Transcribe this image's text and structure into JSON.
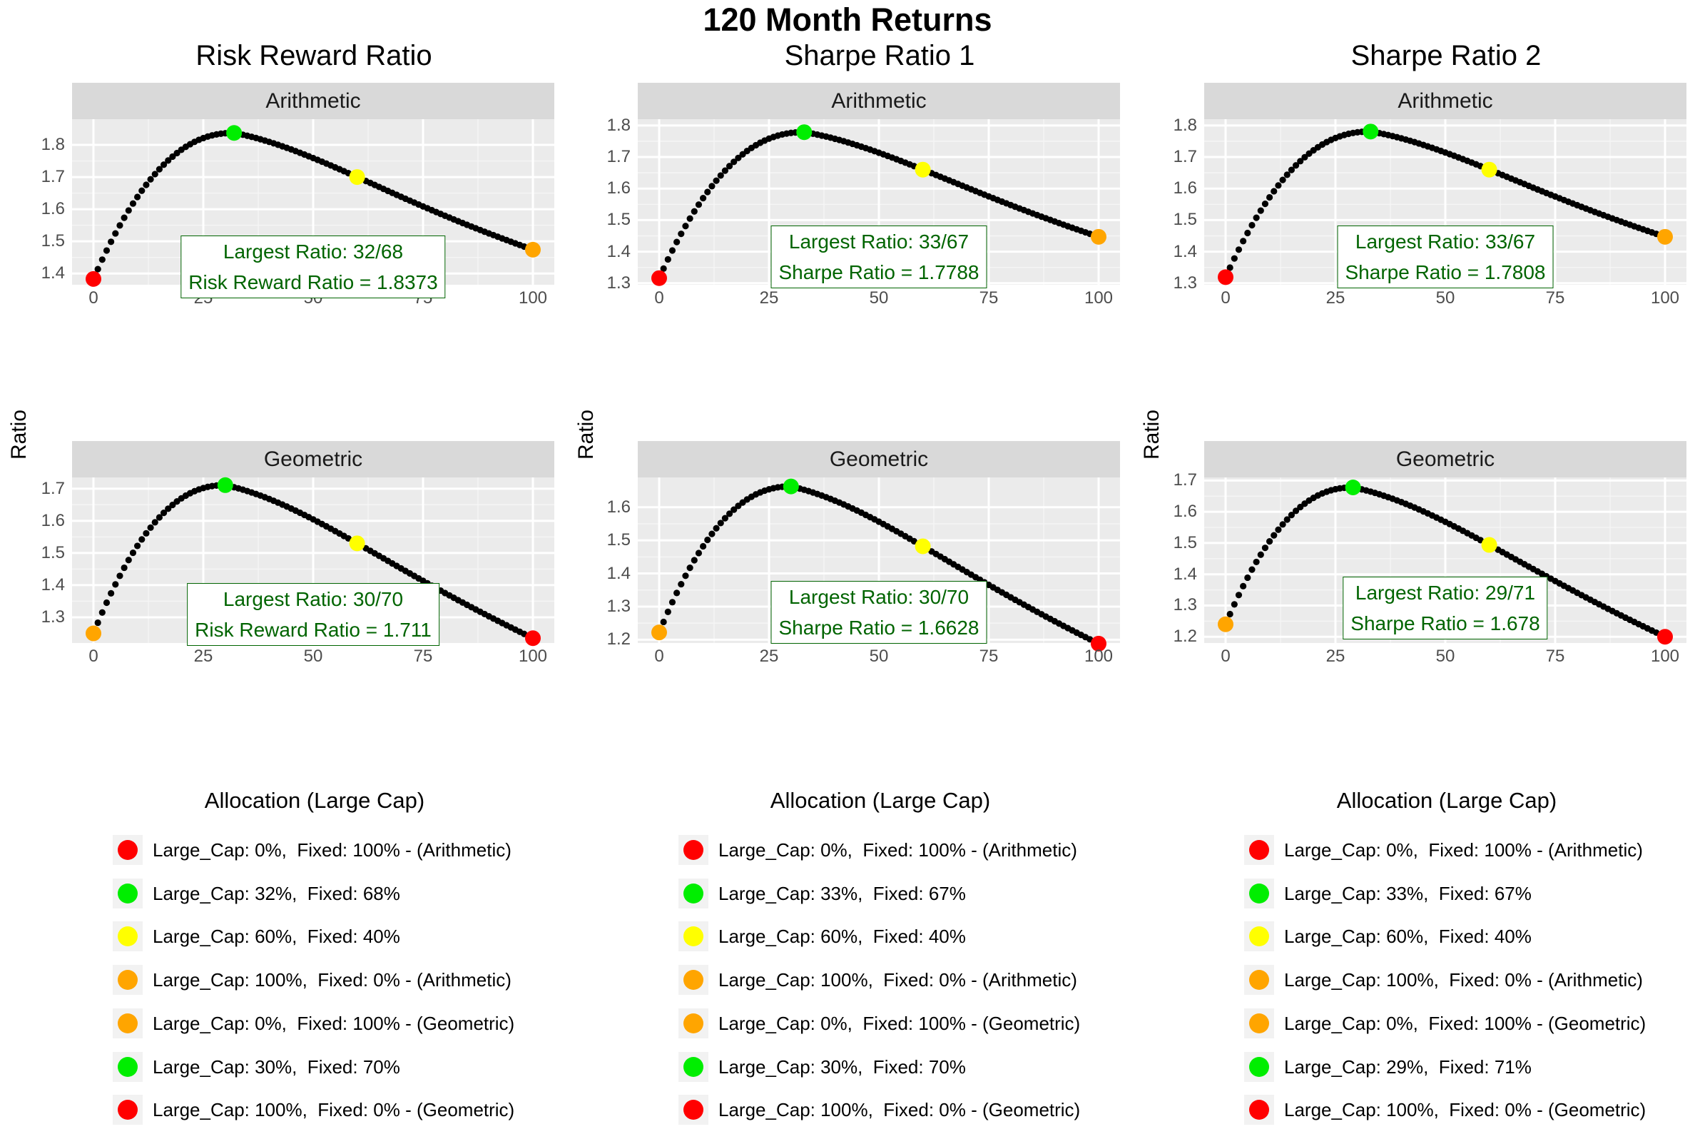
{
  "title": "120 Month Returns",
  "x_axis_label": "Allocation (Large Cap)",
  "y_axis_label": "Ratio",
  "colors": {
    "red": "#ff0000",
    "green": "#00ee00",
    "yellow": "#ffff00",
    "orange": "#ffa500",
    "curve": "#000000",
    "annotation": "#006400"
  },
  "chart_data": [
    {
      "type": "scatter",
      "title": "Risk Reward Ratio",
      "facet": "Arithmetic",
      "xlabel": "",
      "ylabel": "Ratio",
      "xlim": [
        0,
        100
      ],
      "xticks": [
        0,
        25,
        50,
        75,
        100
      ],
      "ylim": [
        1.365,
        1.88
      ],
      "yticks": [
        1.4,
        1.5,
        1.6,
        1.7,
        1.8
      ],
      "curve": {
        "start": 1.383,
        "peak_x": 32,
        "peak": 1.8373,
        "mid_x": 60,
        "mid": 1.7,
        "end": 1.474
      },
      "highlights": [
        {
          "x": 0,
          "y": 1.383,
          "color": "red"
        },
        {
          "x": 32,
          "y": 1.8373,
          "color": "green"
        },
        {
          "x": 60,
          "y": 1.7,
          "color": "yellow"
        },
        {
          "x": 100,
          "y": 1.474,
          "color": "orange"
        }
      ],
      "annotation": {
        "line1": "Largest Ratio: 32/68",
        "line2": "Risk Reward Ratio = 1.8373",
        "x": 50,
        "y": 1.421
      }
    },
    {
      "type": "scatter",
      "title": "Risk Reward Ratio",
      "facet": "Geometric",
      "xlabel": "Allocation (Large Cap)",
      "ylabel": "Ratio",
      "xlim": [
        0,
        100
      ],
      "xticks": [
        0,
        25,
        50,
        75,
        100
      ],
      "ylim": [
        1.22,
        1.735
      ],
      "yticks": [
        1.3,
        1.4,
        1.5,
        1.6,
        1.7
      ],
      "curve": {
        "start": 1.25,
        "peak_x": 30,
        "peak": 1.711,
        "mid_x": 60,
        "mid": 1.53,
        "end": 1.235
      },
      "highlights": [
        {
          "x": 0,
          "y": 1.25,
          "color": "orange"
        },
        {
          "x": 30,
          "y": 1.711,
          "color": "green"
        },
        {
          "x": 60,
          "y": 1.53,
          "color": "yellow"
        },
        {
          "x": 100,
          "y": 1.235,
          "color": "red"
        }
      ],
      "annotation": {
        "line1": "Largest Ratio: 30/70",
        "line2": "Risk Reward Ratio = 1.711",
        "x": 50,
        "y": 1.308
      }
    },
    {
      "type": "scatter",
      "title": "Sharpe Ratio 1",
      "facet": "Arithmetic",
      "xlabel": "",
      "ylabel": "Ratio",
      "xlim": [
        0,
        100
      ],
      "xticks": [
        0,
        25,
        50,
        75,
        100
      ],
      "ylim": [
        1.295,
        1.82
      ],
      "yticks": [
        1.3,
        1.4,
        1.5,
        1.6,
        1.7,
        1.8
      ],
      "curve": {
        "start": 1.316,
        "peak_x": 33,
        "peak": 1.7788,
        "mid_x": 60,
        "mid": 1.66,
        "end": 1.447
      },
      "highlights": [
        {
          "x": 0,
          "y": 1.316,
          "color": "red"
        },
        {
          "x": 33,
          "y": 1.7788,
          "color": "green"
        },
        {
          "x": 60,
          "y": 1.66,
          "color": "yellow"
        },
        {
          "x": 100,
          "y": 1.447,
          "color": "orange"
        }
      ],
      "annotation": {
        "line1": "Largest Ratio: 33/67",
        "line2": "Sharpe Ratio = 1.7788",
        "x": 50,
        "y": 1.383
      }
    },
    {
      "type": "scatter",
      "title": "Sharpe Ratio 1",
      "facet": "Geometric",
      "xlabel": "Allocation (Large Cap)",
      "ylabel": "Ratio",
      "xlim": [
        0,
        100
      ],
      "xticks": [
        0,
        25,
        50,
        75,
        100
      ],
      "ylim": [
        1.19,
        1.69
      ],
      "yticks": [
        1.2,
        1.3,
        1.4,
        1.5,
        1.6
      ],
      "curve": {
        "start": 1.222,
        "peak_x": 30,
        "peak": 1.6628,
        "mid_x": 60,
        "mid": 1.482,
        "end": 1.188
      },
      "highlights": [
        {
          "x": 0,
          "y": 1.222,
          "color": "orange"
        },
        {
          "x": 30,
          "y": 1.6628,
          "color": "green"
        },
        {
          "x": 60,
          "y": 1.482,
          "color": "yellow"
        },
        {
          "x": 100,
          "y": 1.188,
          "color": "red"
        }
      ],
      "annotation": {
        "line1": "Largest Ratio: 30/70",
        "line2": "Sharpe Ratio = 1.6628",
        "x": 50,
        "y": 1.282
      }
    },
    {
      "type": "scatter",
      "title": "Sharpe Ratio 2",
      "facet": "Arithmetic",
      "xlabel": "",
      "ylabel": "Ratio",
      "xlim": [
        0,
        100
      ],
      "xticks": [
        0,
        25,
        50,
        75,
        100
      ],
      "ylim": [
        1.295,
        1.82
      ],
      "yticks": [
        1.3,
        1.4,
        1.5,
        1.6,
        1.7,
        1.8
      ],
      "curve": {
        "start": 1.319,
        "peak_x": 33,
        "peak": 1.7808,
        "mid_x": 60,
        "mid": 1.66,
        "end": 1.447
      },
      "highlights": [
        {
          "x": 0,
          "y": 1.319,
          "color": "red"
        },
        {
          "x": 33,
          "y": 1.7808,
          "color": "green"
        },
        {
          "x": 60,
          "y": 1.66,
          "color": "yellow"
        },
        {
          "x": 100,
          "y": 1.447,
          "color": "orange"
        }
      ],
      "annotation": {
        "line1": "Largest Ratio: 33/67",
        "line2": "Sharpe Ratio = 1.7808",
        "x": 50,
        "y": 1.384
      }
    },
    {
      "type": "scatter",
      "title": "Sharpe Ratio 2",
      "facet": "Geometric",
      "xlabel": "Allocation (Large Cap)",
      "ylabel": "Ratio",
      "xlim": [
        0,
        100
      ],
      "xticks": [
        0,
        25,
        50,
        75,
        100
      ],
      "ylim": [
        1.18,
        1.71
      ],
      "yticks": [
        1.2,
        1.3,
        1.4,
        1.5,
        1.6,
        1.7
      ],
      "curve": {
        "start": 1.24,
        "peak_x": 29,
        "peak": 1.678,
        "mid_x": 60,
        "mid": 1.494,
        "end": 1.2
      },
      "highlights": [
        {
          "x": 0,
          "y": 1.24,
          "color": "orange"
        },
        {
          "x": 29,
          "y": 1.678,
          "color": "green"
        },
        {
          "x": 60,
          "y": 1.494,
          "color": "yellow"
        },
        {
          "x": 100,
          "y": 1.2,
          "color": "red"
        }
      ],
      "annotation": {
        "line1": "Largest Ratio: 29/71",
        "line2": "Sharpe Ratio = 1.678",
        "x": 50,
        "y": 1.292
      }
    }
  ],
  "columns": [
    {
      "title": "Risk Reward Ratio",
      "legend": [
        {
          "color": "red",
          "label": "Large_Cap: 0%,  Fixed: 100% - (Arithmetic)"
        },
        {
          "color": "green",
          "label": "Large_Cap: 32%,  Fixed: 68%"
        },
        {
          "color": "yellow",
          "label": "Large_Cap: 60%,  Fixed: 40%"
        },
        {
          "color": "orange",
          "label": "Large_Cap: 100%,  Fixed: 0% - (Arithmetic)"
        },
        {
          "color": "orange",
          "label": "Large_Cap: 0%,  Fixed: 100% - (Geometric)"
        },
        {
          "color": "green",
          "label": "Large_Cap: 30%,  Fixed: 70%"
        },
        {
          "color": "red",
          "label": "Large_Cap: 100%,  Fixed: 0% - (Geometric)"
        }
      ]
    },
    {
      "title": "Sharpe Ratio 1",
      "legend": [
        {
          "color": "red",
          "label": "Large_Cap: 0%,  Fixed: 100% - (Arithmetic)"
        },
        {
          "color": "green",
          "label": "Large_Cap: 33%,  Fixed: 67%"
        },
        {
          "color": "yellow",
          "label": "Large_Cap: 60%,  Fixed: 40%"
        },
        {
          "color": "orange",
          "label": "Large_Cap: 100%,  Fixed: 0% - (Arithmetic)"
        },
        {
          "color": "orange",
          "label": "Large_Cap: 0%,  Fixed: 100% - (Geometric)"
        },
        {
          "color": "green",
          "label": "Large_Cap: 30%,  Fixed: 70%"
        },
        {
          "color": "red",
          "label": "Large_Cap: 100%,  Fixed: 0% - (Geometric)"
        }
      ]
    },
    {
      "title": "Sharpe Ratio 2",
      "legend": [
        {
          "color": "red",
          "label": "Large_Cap: 0%,  Fixed: 100% - (Arithmetic)"
        },
        {
          "color": "green",
          "label": "Large_Cap: 33%,  Fixed: 67%"
        },
        {
          "color": "yellow",
          "label": "Large_Cap: 60%,  Fixed: 40%"
        },
        {
          "color": "orange",
          "label": "Large_Cap: 100%,  Fixed: 0% - (Arithmetic)"
        },
        {
          "color": "orange",
          "label": "Large_Cap: 0%,  Fixed: 100% - (Geometric)"
        },
        {
          "color": "green",
          "label": "Large_Cap: 29%,  Fixed: 71%"
        },
        {
          "color": "red",
          "label": "Large_Cap: 100%,  Fixed: 0% - (Geometric)"
        }
      ]
    }
  ]
}
